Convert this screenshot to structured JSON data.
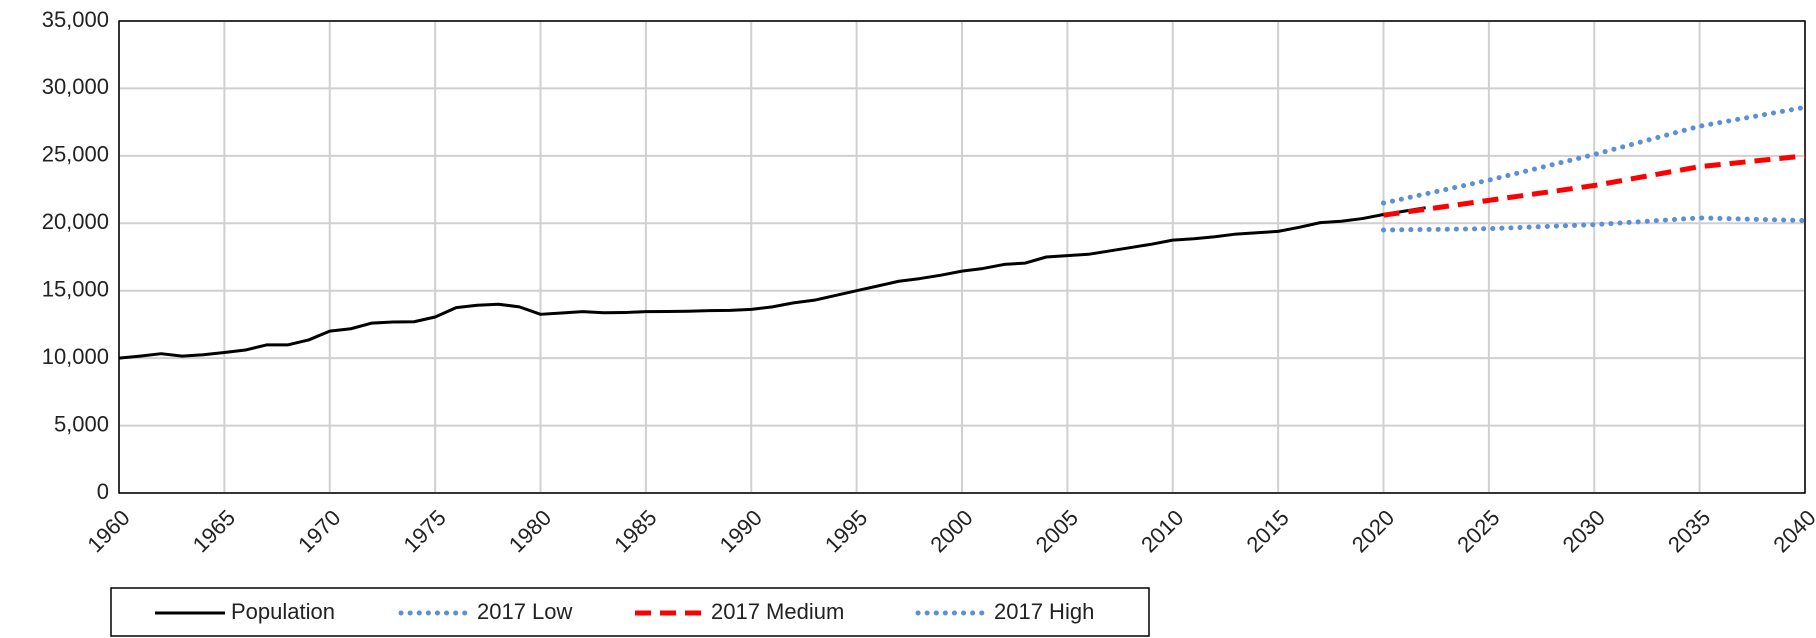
{
  "chart_data": {
    "type": "line",
    "series": [
      {
        "name": "Population",
        "color": "#000000",
        "dash": "solid",
        "x": [
          1960,
          1961,
          1962,
          1963,
          1964,
          1965,
          1966,
          1967,
          1968,
          1969,
          1970,
          1971,
          1972,
          1973,
          1974,
          1975,
          1976,
          1977,
          1978,
          1979,
          1980,
          1981,
          1982,
          1983,
          1984,
          1985,
          1986,
          1987,
          1988,
          1989,
          1990,
          1991,
          1992,
          1993,
          1994,
          1995,
          1996,
          1997,
          1998,
          1999,
          2000,
          2001,
          2002,
          2003,
          2004,
          2005,
          2006,
          2007,
          2008,
          2009,
          2010,
          2011,
          2012,
          2013,
          2014,
          2015,
          2016,
          2017,
          2018,
          2019,
          2020,
          2021,
          2022
        ],
        "values": [
          10000,
          10150,
          10330,
          10150,
          10250,
          10420,
          10600,
          10980,
          10980,
          11350,
          12000,
          12180,
          12600,
          12680,
          12700,
          13050,
          13750,
          13920,
          14000,
          13800,
          13250,
          13350,
          13450,
          13370,
          13380,
          13450,
          13460,
          13480,
          13520,
          13540,
          13620,
          13800,
          14100,
          14300,
          14650,
          15000,
          15350,
          15700,
          15900,
          16150,
          16450,
          16650,
          16950,
          17050,
          17500,
          17600,
          17700,
          17950,
          18200,
          18450,
          18750,
          18850,
          19000,
          19200,
          19300,
          19400,
          19700,
          20050,
          20150,
          20350,
          20650,
          20900,
          21150
        ]
      },
      {
        "name": "2017 Low",
        "color": "#5b8fd6",
        "dash": "dotted",
        "x": [
          2020,
          2025,
          2030,
          2035,
          2040
        ],
        "values": [
          19500,
          19600,
          19900,
          20400,
          20200
        ]
      },
      {
        "name": "2017 Medium",
        "color": "#ff0000",
        "dash": "dashed",
        "x": [
          2020,
          2025,
          2030,
          2035,
          2040
        ],
        "values": [
          20600,
          21700,
          22800,
          24200,
          25000
        ]
      },
      {
        "name": "2017 High",
        "color": "#5b8fd6",
        "dash": "dotted",
        "x": [
          2020,
          2025,
          2030,
          2035,
          2040
        ],
        "values": [
          21500,
          23200,
          25100,
          27200,
          28600
        ]
      }
    ],
    "xlim": [
      1960,
      2040
    ],
    "xticks": [
      1960,
      1965,
      1970,
      1975,
      1980,
      1985,
      1990,
      1995,
      2000,
      2005,
      2010,
      2015,
      2020,
      2025,
      2030,
      2035,
      2040
    ],
    "ylim": [
      0,
      35000
    ],
    "yticks": [
      0,
      {
        "value": 5000,
        "label": "5,000"
      },
      {
        "value": 10000,
        "label": "10,000"
      },
      {
        "value": 15000,
        "label": "15,000"
      },
      {
        "value": 20000,
        "label": "20,000"
      },
      {
        "value": 25000,
        "label": "25,000"
      },
      {
        "value": 30000,
        "label": "30,000"
      },
      {
        "value": 35000,
        "label": "35,000"
      }
    ],
    "grid": true,
    "legend": "bottom"
  }
}
